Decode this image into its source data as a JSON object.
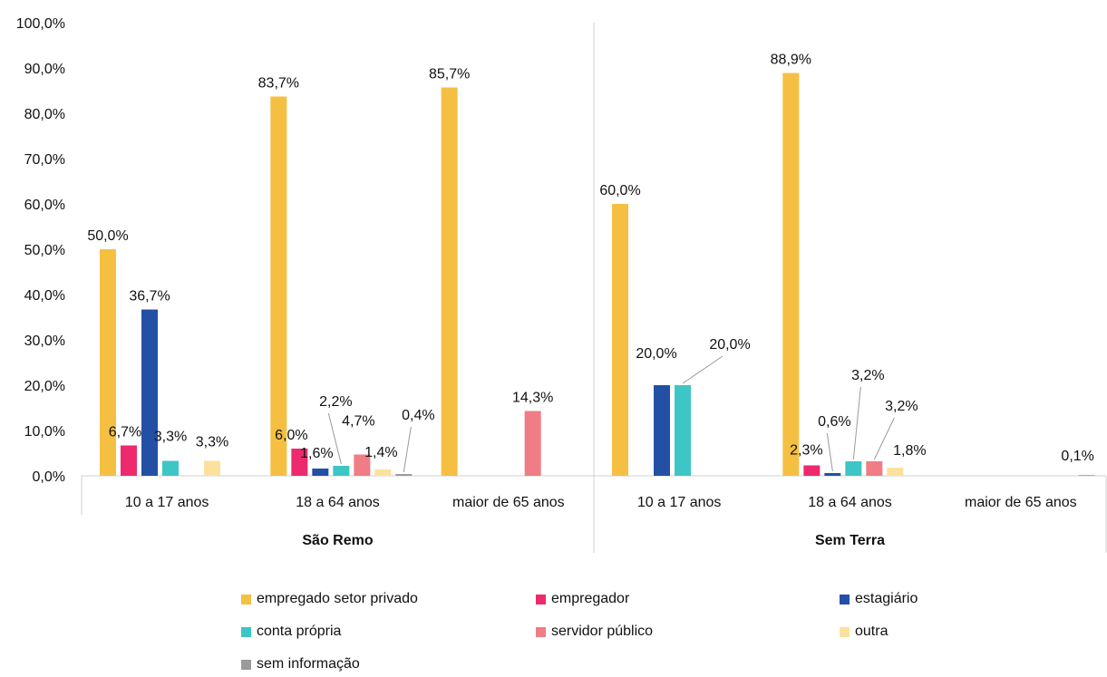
{
  "chart_data": {
    "type": "bar",
    "y_ticks": [
      "0,0%",
      "10,0%",
      "20,0%",
      "30,0%",
      "40,0%",
      "50,0%",
      "60,0%",
      "70,0%",
      "80,0%",
      "90,0%",
      "100,0%"
    ],
    "ylim": [
      0,
      100
    ],
    "grid": false,
    "legend_position": "bottom",
    "groups": [
      {
        "name": "São Remo",
        "categories": [
          "10 a 17 anos",
          "18 a 64 anos",
          "maior de 65 anos"
        ]
      },
      {
        "name": "Sem Terra",
        "categories": [
          "10 a 17 anos",
          "18 a 64 anos",
          "maior de 65 anos"
        ]
      }
    ],
    "series": [
      {
        "name": "empregado setor privado",
        "color": "#F5C042",
        "values": [
          50.0,
          83.7,
          85.7,
          60.0,
          88.9,
          null
        ],
        "labels": [
          "50,0%",
          "83,7%",
          "85,7%",
          "60,0%",
          "88,9%",
          ""
        ]
      },
      {
        "name": "empregador",
        "color": "#EE2A6E",
        "values": [
          6.7,
          6.0,
          null,
          null,
          2.3,
          null
        ],
        "labels": [
          "6,7%",
          "6,0%",
          "",
          "",
          "2,3%",
          ""
        ]
      },
      {
        "name": "estagiário",
        "color": "#2350A5",
        "values": [
          36.7,
          1.6,
          null,
          20.0,
          0.6,
          null
        ],
        "labels": [
          "36,7%",
          "1,6%",
          "",
          "20,0%",
          "0,6%",
          ""
        ]
      },
      {
        "name": "conta própria",
        "color": "#3EC6C6",
        "values": [
          3.3,
          2.2,
          null,
          20.0,
          3.2,
          null
        ],
        "labels": [
          "3,3%",
          "2,2%",
          "",
          "20,0%",
          "3,2%",
          ""
        ]
      },
      {
        "name": "servidor público",
        "color": "#F07C86",
        "values": [
          null,
          4.7,
          14.3,
          null,
          3.2,
          null
        ],
        "labels": [
          "",
          "4,7%",
          "14,3%",
          "",
          "3,2%",
          ""
        ]
      },
      {
        "name": "outra",
        "color": "#FBE29C",
        "values": [
          3.3,
          1.4,
          null,
          null,
          1.8,
          null
        ],
        "labels": [
          "3,3%",
          "1,4%",
          "",
          "",
          "1,8%",
          ""
        ]
      },
      {
        "name": "sem informação",
        "color": "#9A9A9A",
        "values": [
          null,
          0.4,
          null,
          null,
          null,
          0.1
        ],
        "labels": [
          "",
          "0,4%",
          "",
          "",
          "",
          "0,1%"
        ]
      }
    ]
  }
}
